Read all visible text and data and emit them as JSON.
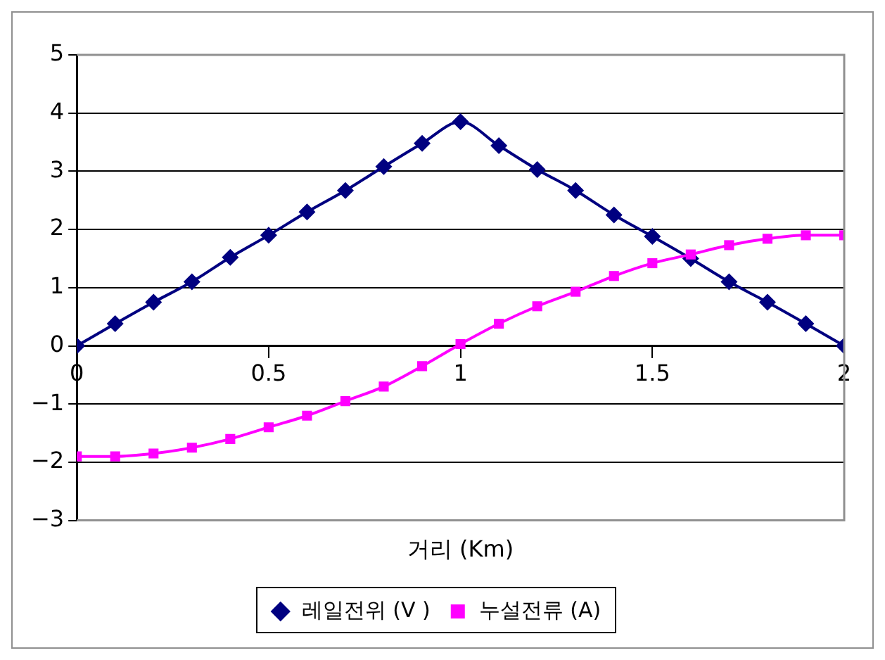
{
  "chart_data": {
    "type": "line",
    "xlabel": "거리 (Km)",
    "x": [
      0,
      0.1,
      0.2,
      0.3,
      0.4,
      0.5,
      0.6,
      0.7,
      0.8,
      0.9,
      1,
      1.1,
      1.2,
      1.3,
      1.4,
      1.5,
      1.6,
      1.7,
      1.8,
      1.9,
      2
    ],
    "series": [
      {
        "name": "레일전위 (V )",
        "color": "#000080",
        "marker": "diamond",
        "values": [
          0,
          0.38,
          0.75,
          1.1,
          1.52,
          1.9,
          2.3,
          2.67,
          3.08,
          3.48,
          3.85,
          3.44,
          3.03,
          2.67,
          2.25,
          1.88,
          1.5,
          1.1,
          0.75,
          0.38,
          0
        ]
      },
      {
        "name": "누설전류 (A)",
        "color": "#ff00ff",
        "marker": "square",
        "values": [
          -1.9,
          -1.9,
          -1.85,
          -1.75,
          -1.6,
          -1.4,
          -1.2,
          -0.95,
          -0.7,
          -0.35,
          0.03,
          0.38,
          0.68,
          0.93,
          1.2,
          1.42,
          1.57,
          1.73,
          1.84,
          1.9,
          1.9
        ]
      }
    ],
    "xlim": [
      0,
      2
    ],
    "xticks": [
      0,
      0.5,
      1,
      1.5,
      2
    ],
    "ylim": [
      -3,
      5
    ],
    "yticks": [
      -3,
      -2,
      -1,
      0,
      1,
      2,
      3,
      4,
      5
    ],
    "grid": "y",
    "legend": "bottom"
  }
}
